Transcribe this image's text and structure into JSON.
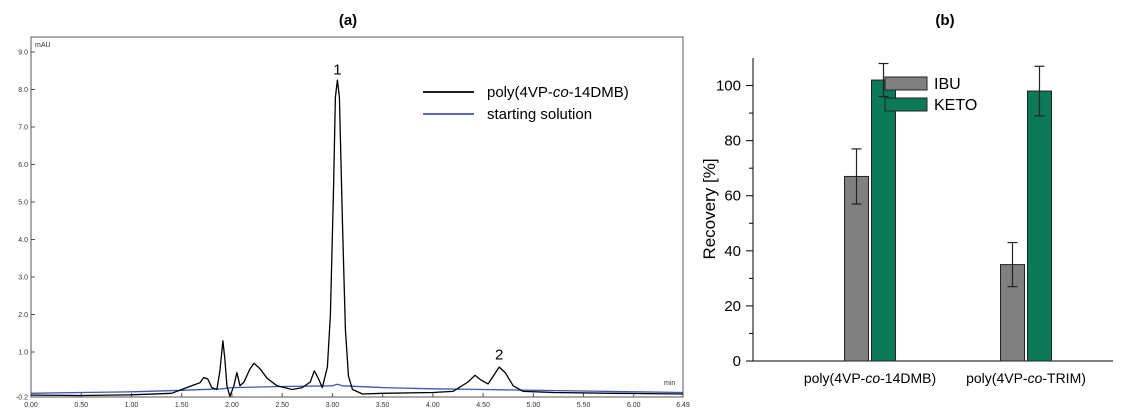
{
  "chart_data": [
    {
      "panel_label": "(a)",
      "type": "line",
      "ylabel": "mAU",
      "xlabel": "min",
      "xlim": [
        0.0,
        6.49
      ],
      "ylim": [
        -0.2,
        9.4
      ],
      "x_ticks": [
        "0.00",
        "0.50",
        "1.00",
        "1.50",
        "2.00",
        "2.50",
        "3.00",
        "3.50",
        "4.00",
        "4.50",
        "5.00",
        "5.50",
        "6.00",
        "6.49"
      ],
      "y_ticks": [
        "-0.2",
        "1.0",
        "2.0",
        "3.0",
        "4.0",
        "5.0",
        "6.0",
        "7.0",
        "8.0",
        "9.0"
      ],
      "peak_labels": [
        {
          "text": "1",
          "x": 3.05,
          "y": 8.3
        },
        {
          "text": "2",
          "x": 4.66,
          "y": 0.7
        }
      ],
      "series": [
        {
          "name": "poly(4VP-co-14DMB)",
          "name_parts": [
            "poly(4VP-",
            "co",
            "-14DMB)"
          ],
          "color": "#000000",
          "points": [
            [
              0.0,
              -0.15
            ],
            [
              0.5,
              -0.16
            ],
            [
              1.0,
              -0.14
            ],
            [
              1.4,
              -0.1
            ],
            [
              1.55,
              0.05
            ],
            [
              1.62,
              0.12
            ],
            [
              1.68,
              0.18
            ],
            [
              1.72,
              0.32
            ],
            [
              1.76,
              0.28
            ],
            [
              1.8,
              0.05
            ],
            [
              1.85,
              0.0
            ],
            [
              1.88,
              0.5
            ],
            [
              1.91,
              1.3
            ],
            [
              1.93,
              0.8
            ],
            [
              1.95,
              0.1
            ],
            [
              1.98,
              -0.18
            ],
            [
              2.02,
              0.1
            ],
            [
              2.05,
              0.45
            ],
            [
              2.08,
              0.1
            ],
            [
              2.12,
              0.2
            ],
            [
              2.18,
              0.55
            ],
            [
              2.22,
              0.7
            ],
            [
              2.28,
              0.55
            ],
            [
              2.35,
              0.3
            ],
            [
              2.45,
              0.1
            ],
            [
              2.6,
              0.0
            ],
            [
              2.7,
              0.05
            ],
            [
              2.78,
              0.2
            ],
            [
              2.82,
              0.5
            ],
            [
              2.86,
              0.3
            ],
            [
              2.9,
              0.05
            ],
            [
              2.95,
              0.6
            ],
            [
              2.98,
              2.0
            ],
            [
              3.01,
              5.2
            ],
            [
              3.03,
              7.8
            ],
            [
              3.05,
              8.25
            ],
            [
              3.07,
              7.8
            ],
            [
              3.1,
              4.5
            ],
            [
              3.13,
              1.6
            ],
            [
              3.16,
              0.35
            ],
            [
              3.2,
              0.0
            ],
            [
              3.3,
              -0.12
            ],
            [
              3.5,
              -0.1
            ],
            [
              4.0,
              -0.08
            ],
            [
              4.2,
              -0.05
            ],
            [
              4.35,
              0.2
            ],
            [
              4.42,
              0.38
            ],
            [
              4.48,
              0.25
            ],
            [
              4.55,
              0.15
            ],
            [
              4.6,
              0.35
            ],
            [
              4.66,
              0.6
            ],
            [
              4.72,
              0.45
            ],
            [
              4.8,
              0.1
            ],
            [
              4.9,
              -0.05
            ],
            [
              5.2,
              -0.08
            ],
            [
              5.8,
              -0.1
            ],
            [
              6.49,
              -0.12
            ]
          ]
        },
        {
          "name": "starting solution",
          "color": "#3b58b8",
          "points": [
            [
              0.0,
              -0.1
            ],
            [
              0.5,
              -0.08
            ],
            [
              1.0,
              -0.06
            ],
            [
              1.5,
              -0.02
            ],
            [
              1.9,
              0.02
            ],
            [
              2.0,
              0.05
            ],
            [
              2.5,
              0.08
            ],
            [
              3.0,
              0.1
            ],
            [
              3.05,
              0.14
            ],
            [
              3.1,
              0.1
            ],
            [
              3.5,
              0.05
            ],
            [
              4.0,
              0.02
            ],
            [
              4.5,
              0.0
            ],
            [
              5.0,
              -0.02
            ],
            [
              5.5,
              -0.04
            ],
            [
              6.0,
              -0.06
            ],
            [
              6.49,
              -0.08
            ]
          ]
        }
      ]
    },
    {
      "panel_label": "(b)",
      "type": "bar",
      "ylabel": "Recovery [%]",
      "ylim": [
        0,
        110
      ],
      "y_ticks": [
        "0",
        "20",
        "40",
        "60",
        "80",
        "100"
      ],
      "categories": [
        "poly(4VP-co-14DMB)",
        "poly(4VP-co-TRIM)"
      ],
      "category_parts": [
        [
          "poly(4VP-",
          "co",
          "-14DMB)"
        ],
        [
          "poly(4VP-",
          "co",
          "-TRIM)"
        ]
      ],
      "series": [
        {
          "name": "IBU",
          "color": "#808080",
          "values": [
            67,
            35
          ],
          "errors": [
            10,
            8
          ]
        },
        {
          "name": "KETO",
          "color": "#0c7a58",
          "values": [
            102,
            98
          ],
          "errors": [
            6,
            9
          ]
        }
      ],
      "legend_position": "top-right"
    }
  ]
}
